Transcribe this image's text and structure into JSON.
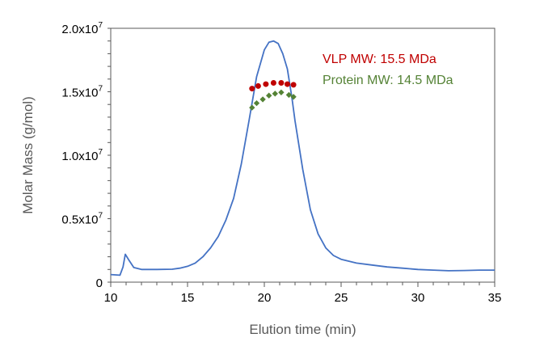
{
  "chart_data": {
    "type": "line",
    "title": "",
    "xlabel": "Elution time (min)",
    "ylabel": "Molar Mass (g/mol)",
    "xlim": [
      10,
      35
    ],
    "ylim": [
      0,
      20000000
    ],
    "grid": false,
    "xticks": [
      10,
      15,
      20,
      25,
      30,
      35
    ],
    "xtick_labels": [
      "10",
      "15",
      "20",
      "25",
      "30",
      "35"
    ],
    "yticks": [
      0,
      5000000,
      10000000,
      15000000,
      20000000
    ],
    "ytick_labels": [
      {
        "mant": "0",
        "exp": ""
      },
      {
        "mant": "0.5x10",
        "exp": "7"
      },
      {
        "mant": "1.0x10",
        "exp": "7"
      },
      {
        "mant": "1.5x10",
        "exp": "7"
      },
      {
        "mant": "2.0x10",
        "exp": "7"
      }
    ],
    "series": [
      {
        "kind": "line",
        "color": "#4472c4",
        "x": [
          10,
          10.6,
          10.8,
          10.95,
          11.2,
          11.5,
          12,
          13,
          14,
          14.5,
          15,
          15.5,
          16,
          16.5,
          17,
          17.5,
          18,
          18.5,
          19,
          19.5,
          20,
          20.3,
          20.6,
          20.9,
          21.2,
          21.5,
          21.8,
          22,
          22.5,
          23,
          23.5,
          24,
          24.5,
          25,
          26,
          27,
          28,
          29,
          30,
          31,
          32,
          33,
          34,
          35
        ],
        "y": [
          600000,
          550000,
          1200000,
          2200000,
          1700000,
          1150000,
          1000000,
          1000000,
          1020000,
          1100000,
          1250000,
          1500000,
          2000000,
          2700000,
          3600000,
          4900000,
          6600000,
          9300000,
          12700000,
          16200000,
          18300000,
          18900000,
          19000000,
          18800000,
          18000000,
          16800000,
          14500000,
          12700000,
          8900000,
          5700000,
          3800000,
          2700000,
          2100000,
          1800000,
          1500000,
          1350000,
          1200000,
          1100000,
          1000000,
          950000,
          900000,
          920000,
          950000,
          950000
        ]
      },
      {
        "kind": "points",
        "marker": "circle",
        "color": "#c00000",
        "x": [
          19.2,
          19.6,
          20.1,
          20.6,
          21.1,
          21.5,
          21.9
        ],
        "y": [
          15250000,
          15450000,
          15600000,
          15700000,
          15700000,
          15600000,
          15550000
        ]
      },
      {
        "kind": "points",
        "marker": "diamond",
        "color": "#548235",
        "x": [
          19.2,
          19.5,
          19.9,
          20.3,
          20.7,
          21.1,
          21.6,
          21.9
        ],
        "y": [
          13750000,
          14100000,
          14400000,
          14700000,
          14850000,
          14950000,
          14750000,
          14600000
        ]
      }
    ],
    "annotations": [
      {
        "text": "VLP MW: 15.5 MDa",
        "color": "#c00000"
      },
      {
        "text": "Protein MW: 14.5 MDa",
        "color": "#548235"
      }
    ]
  }
}
